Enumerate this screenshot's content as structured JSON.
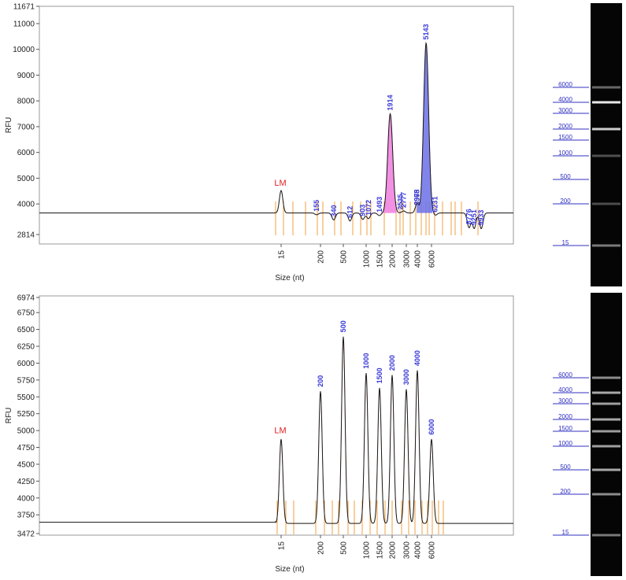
{
  "chart_data": [
    {
      "type": "line",
      "ylabel": "RFU",
      "xlabel": "Size (nt)",
      "ylim": [
        2814,
        11671
      ],
      "y_ticks": [
        2814,
        4000,
        5000,
        6000,
        7000,
        8000,
        9000,
        10000,
        11000,
        11671
      ],
      "x_ticks": [
        "15",
        "200",
        "500",
        "1000",
        "1500",
        "2000",
        "3000",
        "4000",
        "6000"
      ],
      "marker_label": "LM",
      "baseline": 3650,
      "peaks": [
        {
          "label": "",
          "size": 15,
          "rfu": 4520
        },
        {
          "label": "155",
          "size": 155,
          "rfu": 3580
        },
        {
          "label": "340",
          "size": 340,
          "rfu": 3380
        },
        {
          "label": "612",
          "size": 612,
          "rfu": 3340
        },
        {
          "label": "903",
          "size": 903,
          "rfu": 3400
        },
        {
          "label": "1072",
          "size": 1072,
          "rfu": 3430
        },
        {
          "label": "1493",
          "size": 1493,
          "rfu": 3550
        },
        {
          "label": "1914",
          "size": 1914,
          "rfu": 7500
        },
        {
          "label": "2535",
          "size": 2535,
          "rfu": 3650
        },
        {
          "label": "2777",
          "size": 2777,
          "rfu": 3730
        },
        {
          "label": "3965",
          "size": 3965,
          "rfu": 3830
        },
        {
          "label": "3978",
          "size": 3978,
          "rfu": 3830
        },
        {
          "label": "5143",
          "size": 5143,
          "rfu": 10250
        },
        {
          "label": "6231",
          "size": 6231,
          "rfu": 3560
        },
        {
          "label": "8776",
          "size": 8776,
          "rfu": 3080
        },
        {
          "label": "9251",
          "size": 9251,
          "rfu": 3050
        },
        {
          "label": "9933",
          "size": 9933,
          "rfu": 3040
        }
      ],
      "filled_peaks": [
        {
          "size": 1914,
          "color": "#f07ddf"
        },
        {
          "size": 5143,
          "color": "#6b70e8"
        }
      ]
    },
    {
      "type": "line",
      "ylabel": "RFU",
      "xlabel": "Size (nt)",
      "ylim": [
        3472,
        6974
      ],
      "y_ticks": [
        3472,
        3750,
        4000,
        4250,
        4500,
        4750,
        5000,
        5250,
        5500,
        5750,
        6000,
        6250,
        6500,
        6750,
        6974
      ],
      "x_ticks": [
        "15",
        "200",
        "500",
        "1000",
        "1500",
        "2000",
        "3000",
        "4000",
        "6000"
      ],
      "marker_label": "LM",
      "baseline": 3640,
      "peaks": [
        {
          "label": "",
          "size": 15,
          "rfu": 4890
        },
        {
          "label": "200",
          "size": 200,
          "rfu": 5600
        },
        {
          "label": "500",
          "size": 500,
          "rfu": 6410
        },
        {
          "label": "1000",
          "size": 1000,
          "rfu": 5870
        },
        {
          "label": "1500",
          "size": 1500,
          "rfu": 5650
        },
        {
          "label": "2000",
          "size": 2000,
          "rfu": 5840
        },
        {
          "label": "3000",
          "size": 3000,
          "rfu": 5630
        },
        {
          "label": "4000",
          "size": 4000,
          "rfu": 5910
        },
        {
          "label": "6000",
          "size": 6000,
          "rfu": 4890
        }
      ]
    }
  ],
  "gels": [
    {
      "ladder_labels": [
        "6000",
        "4000",
        "3000",
        "2000",
        "1500",
        "1000",
        "500",
        "200",
        "15"
      ],
      "bands": [
        {
          "size": 4000,
          "intensity": 0.95
        },
        {
          "size": 2000,
          "intensity": 0.8
        },
        {
          "size": 6000,
          "intensity": 0.25
        },
        {
          "size": 1000,
          "intensity": 0.12
        },
        {
          "size": 200,
          "intensity": 0.1
        },
        {
          "size": 15,
          "intensity": 0.35
        }
      ]
    },
    {
      "ladder_labels": [
        "6000",
        "4000",
        "3000",
        "2000",
        "1500",
        "1000",
        "500",
        "200",
        "15"
      ],
      "bands": [
        {
          "size": 6000,
          "intensity": 0.45
        },
        {
          "size": 4000,
          "intensity": 0.6
        },
        {
          "size": 3000,
          "intensity": 0.55
        },
        {
          "size": 2000,
          "intensity": 0.6
        },
        {
          "size": 1500,
          "intensity": 0.55
        },
        {
          "size": 1000,
          "intensity": 0.55
        },
        {
          "size": 500,
          "intensity": 0.6
        },
        {
          "size": 200,
          "intensity": 0.45
        },
        {
          "size": 15,
          "intensity": 0.35
        }
      ]
    }
  ]
}
